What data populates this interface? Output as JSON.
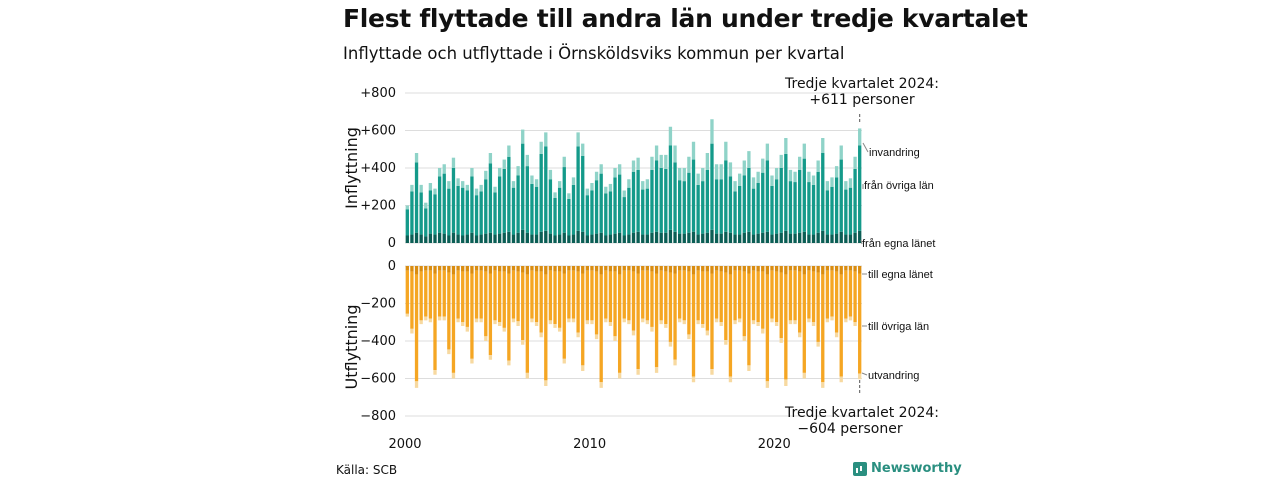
{
  "title": "Flest flyttade till andra län under tredje kvartalet",
  "subtitle": "Inflyttade och utflyttade i Örnsköldsviks kommun per kvartal",
  "source": "Källa: SCB",
  "brand": "Newsworthy",
  "colors": {
    "in_own": "#0b5e55",
    "in_other": "#149a8a",
    "in_immig": "#8fd3c8",
    "out_own": "#d98c10",
    "out_other": "#f5a623",
    "out_emig": "#f7d9a0"
  },
  "annotations": {
    "top_line1": "Tredje kvartalet 2024:",
    "top_line2": "+611 personer",
    "bottom_line1": "Tredje kvartalet 2024:",
    "bottom_line2": "−604 personer"
  },
  "chart_data": {
    "type": "bar",
    "stacked": true,
    "x_ticks": [
      "2000",
      "2010",
      "2020"
    ],
    "x_range": [
      "2000 Q1",
      "2024 Q3"
    ],
    "top": {
      "ylabel": "Inflyttning",
      "yticks": [
        "0",
        "+200",
        "+400",
        "+600",
        "+800"
      ],
      "ylim": [
        0,
        800
      ],
      "segment_labels": [
        "från egna länet",
        "från övriga län",
        "invandring"
      ]
    },
    "bottom": {
      "ylabel": "Utflyttning",
      "yticks": [
        "0",
        "−200",
        "−400",
        "−600",
        "−800"
      ],
      "ylim": [
        -800,
        0
      ],
      "segment_labels": [
        "till egna länet",
        "till övriga län",
        "utvandring"
      ]
    },
    "start_year": 2000,
    "inflow_total": [
      200,
      310,
      480,
      310,
      215,
      320,
      290,
      400,
      420,
      330,
      455,
      345,
      330,
      310,
      400,
      290,
      310,
      385,
      480,
      300,
      400,
      445,
      520,
      330,
      410,
      605,
      470,
      360,
      340,
      540,
      590,
      390,
      270,
      330,
      460,
      265,
      350,
      590,
      530,
      290,
      320,
      380,
      420,
      300,
      315,
      400,
      420,
      280,
      340,
      440,
      455,
      330,
      340,
      460,
      520,
      470,
      470,
      620,
      520,
      400,
      400,
      460,
      540,
      370,
      400,
      480,
      660,
      420,
      420,
      540,
      430,
      330,
      370,
      440,
      490,
      350,
      380,
      450,
      530,
      360,
      400,
      470,
      560,
      390,
      380,
      460,
      530,
      380,
      360,
      440,
      560,
      330,
      350,
      410,
      520,
      330,
      345,
      460,
      611
    ],
    "inflow_own": [
      40,
      45,
      55,
      45,
      35,
      50,
      45,
      55,
      50,
      40,
      55,
      45,
      40,
      45,
      55,
      40,
      45,
      50,
      55,
      45,
      50,
      55,
      60,
      45,
      55,
      70,
      55,
      45,
      45,
      60,
      65,
      50,
      40,
      45,
      55,
      40,
      45,
      65,
      60,
      40,
      45,
      50,
      55,
      40,
      45,
      50,
      55,
      40,
      45,
      55,
      60,
      45,
      45,
      55,
      60,
      55,
      55,
      70,
      60,
      50,
      50,
      55,
      60,
      45,
      50,
      55,
      70,
      50,
      50,
      60,
      55,
      45,
      45,
      55,
      60,
      45,
      50,
      55,
      60,
      45,
      50,
      55,
      65,
      50,
      50,
      55,
      60,
      45,
      45,
      55,
      65,
      45,
      45,
      50,
      60,
      45,
      45,
      55,
      65
    ],
    "inflow_immig": [
      20,
      35,
      50,
      40,
      30,
      40,
      30,
      45,
      50,
      40,
      55,
      40,
      35,
      30,
      45,
      35,
      35,
      45,
      55,
      30,
      45,
      50,
      60,
      35,
      50,
      75,
      60,
      45,
      40,
      65,
      75,
      50,
      30,
      35,
      55,
      30,
      40,
      75,
      65,
      35,
      40,
      45,
      50,
      35,
      40,
      50,
      55,
      35,
      45,
      60,
      65,
      45,
      50,
      70,
      80,
      70,
      75,
      100,
      90,
      65,
      70,
      85,
      95,
      60,
      70,
      90,
      130,
      80,
      80,
      100,
      75,
      55,
      65,
      80,
      90,
      60,
      60,
      75,
      90,
      55,
      60,
      70,
      85,
      60,
      55,
      70,
      80,
      55,
      50,
      60,
      80,
      50,
      50,
      60,
      75,
      45,
      50,
      65,
      90
    ],
    "outflow_total": [
      -270,
      -360,
      -650,
      -310,
      -290,
      -300,
      -580,
      -290,
      -290,
      -470,
      -600,
      -300,
      -320,
      -350,
      -520,
      -300,
      -300,
      -400,
      -500,
      -310,
      -320,
      -350,
      -530,
      -300,
      -320,
      -420,
      -600,
      -300,
      -320,
      -380,
      -640,
      -310,
      -330,
      -350,
      -520,
      -300,
      -300,
      -380,
      -560,
      -310,
      -310,
      -390,
      -650,
      -300,
      -320,
      -400,
      -600,
      -300,
      -310,
      -370,
      -580,
      -300,
      -310,
      -350,
      -570,
      -310,
      -330,
      -430,
      -530,
      -300,
      -310,
      -390,
      -620,
      -310,
      -330,
      -370,
      -580,
      -300,
      -320,
      -420,
      -620,
      -310,
      -300,
      -400,
      -560,
      -310,
      -320,
      -360,
      -650,
      -300,
      -320,
      -410,
      -640,
      -310,
      -310,
      -380,
      -600,
      -300,
      -320,
      -430,
      -650,
      -300,
      -290,
      -380,
      -620,
      -300,
      -290,
      -320,
      -604
    ],
    "outflow_own": [
      -25,
      -30,
      -45,
      -30,
      -25,
      -25,
      -40,
      -25,
      -25,
      -35,
      -45,
      -25,
      -30,
      -30,
      -40,
      -25,
      -25,
      -30,
      -40,
      -25,
      -30,
      -30,
      -40,
      -25,
      -30,
      -35,
      -45,
      -25,
      -30,
      -30,
      -45,
      -25,
      -30,
      -30,
      -40,
      -25,
      -25,
      -30,
      -40,
      -25,
      -25,
      -30,
      -45,
      -25,
      -30,
      -30,
      -45,
      -25,
      -25,
      -30,
      -40,
      -25,
      -25,
      -30,
      -40,
      -25,
      -30,
      -35,
      -40,
      -25,
      -25,
      -30,
      -45,
      -25,
      -30,
      -30,
      -40,
      -25,
      -30,
      -35,
      -45,
      -25,
      -25,
      -30,
      -40,
      -25,
      -30,
      -30,
      -45,
      -25,
      -30,
      -35,
      -45,
      -25,
      -25,
      -30,
      -45,
      -25,
      -30,
      -35,
      -45,
      -25,
      -25,
      -30,
      -45,
      -25,
      -25,
      -30,
      -40
    ],
    "outflow_emig": [
      -15,
      -25,
      -35,
      -20,
      -20,
      -20,
      -25,
      -20,
      -20,
      -25,
      -30,
      -20,
      -20,
      -25,
      -25,
      -20,
      -20,
      -25,
      -25,
      -20,
      -20,
      -20,
      -25,
      -20,
      -25,
      -25,
      -30,
      -20,
      -20,
      -25,
      -30,
      -20,
      -20,
      -20,
      -25,
      -20,
      -20,
      -25,
      -30,
      -20,
      -20,
      -25,
      -30,
      -20,
      -20,
      -25,
      -30,
      -20,
      -20,
      -25,
      -30,
      -20,
      -20,
      -25,
      -30,
      -20,
      -20,
      -25,
      -30,
      -20,
      -20,
      -25,
      -30,
      -20,
      -20,
      -25,
      -30,
      -20,
      -20,
      -25,
      -30,
      -20,
      -20,
      -25,
      -30,
      -20,
      -20,
      -25,
      -35,
      -20,
      -20,
      -25,
      -35,
      -20,
      -20,
      -25,
      -30,
      -20,
      -20,
      -25,
      -30,
      -20,
      -20,
      -25,
      -30,
      -20,
      -20,
      -20,
      -30
    ]
  }
}
